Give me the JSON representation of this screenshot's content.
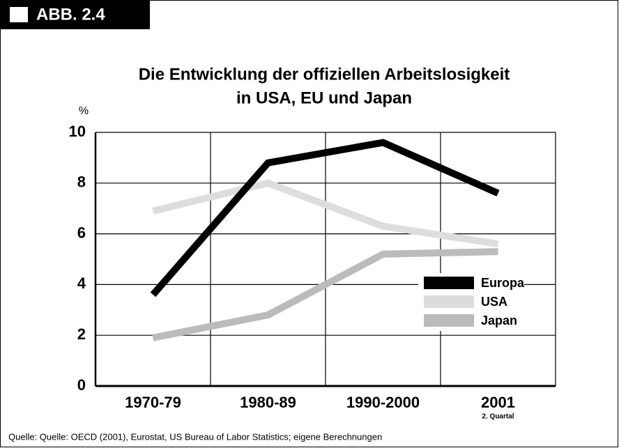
{
  "badge": "ABB. 2.4",
  "chart_data": {
    "type": "line",
    "title": "Die Entwicklung der offiziellen Arbeitslosigkeit",
    "subtitle": "in USA, EU und Japan",
    "y_label": "%",
    "categories": [
      "1970-79",
      "1980-89",
      "1990-2000",
      "2001"
    ],
    "category_note": "2. Quartal",
    "series": [
      {
        "name": "Europa",
        "color": "#000000",
        "values": [
          3.6,
          8.8,
          9.6,
          7.6
        ]
      },
      {
        "name": "USA",
        "color": "#dddddd",
        "values": [
          6.9,
          8.0,
          6.3,
          5.6
        ]
      },
      {
        "name": "Japan",
        "color": "#bbbbbb",
        "values": [
          1.9,
          2.8,
          5.2,
          5.3
        ]
      }
    ],
    "ylim": [
      0,
      10
    ],
    "yticks": [
      0,
      2,
      4,
      6,
      8,
      10
    ],
    "grid": true,
    "legend": "right",
    "source": "Quelle: Quelle: OECD (2001), Eurostat, US Bureau of Labor Statistics; eigene Berechnungen"
  }
}
